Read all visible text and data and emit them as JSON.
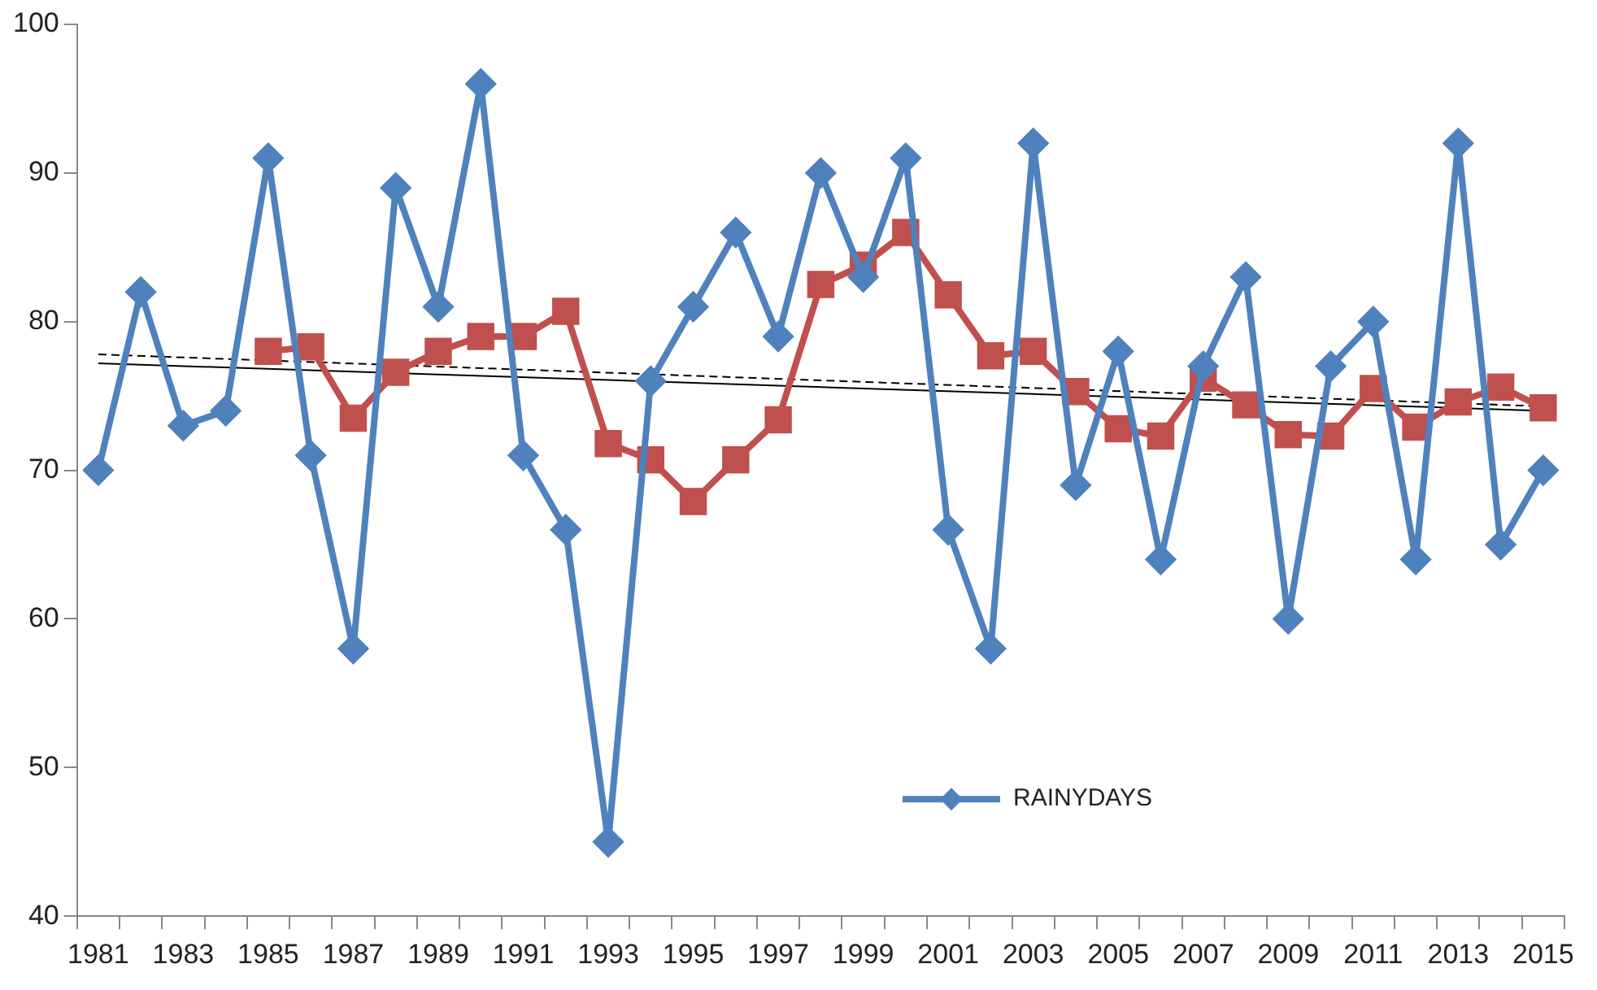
{
  "chart_data": {
    "type": "line",
    "categories": [
      "1981",
      null,
      "1983",
      null,
      "1985",
      null,
      "1987",
      null,
      "1989",
      null,
      "1991",
      null,
      "1993",
      null,
      "1995",
      null,
      "1997",
      null,
      "1999",
      null,
      "2001",
      null,
      "2003",
      null,
      "2005",
      null,
      "2007",
      null,
      "2009",
      null,
      "2011",
      null,
      "2013",
      null,
      "2015"
    ],
    "ylim": [
      40,
      100
    ],
    "yticks": [
      40,
      50,
      60,
      70,
      80,
      90,
      100
    ],
    "grid": false,
    "legend": "bottom",
    "series": [
      {
        "name": "RAINYDAYS",
        "color": "#4f81bd",
        "marker": "diamond",
        "values": [
          70,
          82,
          73,
          74,
          91,
          71,
          58,
          89,
          81,
          96,
          71,
          66,
          45,
          76,
          81,
          86,
          79,
          90,
          83,
          91,
          66,
          58,
          92,
          69,
          78,
          64,
          77,
          83,
          60,
          77,
          80,
          64,
          92,
          65,
          70
        ]
      },
      {
        "color": "#c0504d",
        "marker": "square",
        "values": [
          null,
          null,
          null,
          null,
          78,
          78.3,
          73.5,
          76.6,
          78,
          79,
          79,
          80.7,
          71.8,
          70.7,
          67.9,
          70.7,
          73.4,
          82.5,
          83.8,
          86,
          81.8,
          77.7,
          78,
          75.3,
          72.8,
          72.3,
          76.2,
          74.4,
          72.4,
          72.3,
          75.5,
          72.9,
          74.6,
          75.6,
          74.2
        ]
      },
      {
        "type": "line",
        "color": "#000000",
        "marker": "none",
        "line_style": "solid",
        "values": [
          77.2,
          null,
          null,
          null,
          null,
          null,
          null,
          null,
          null,
          null,
          null,
          null,
          null,
          null,
          null,
          null,
          null,
          null,
          null,
          null,
          null,
          null,
          null,
          null,
          null,
          null,
          null,
          null,
          null,
          null,
          null,
          null,
          null,
          null,
          74.0
        ]
      },
      {
        "type": "line",
        "color": "#000000",
        "marker": "none",
        "line_style": "dashed",
        "values": [
          77.8,
          null,
          null,
          null,
          null,
          null,
          null,
          null,
          null,
          null,
          null,
          null,
          null,
          null,
          null,
          null,
          null,
          null,
          null,
          null,
          null,
          null,
          null,
          null,
          null,
          null,
          null,
          null,
          null,
          null,
          null,
          null,
          null,
          null,
          74.3
        ]
      }
    ]
  }
}
